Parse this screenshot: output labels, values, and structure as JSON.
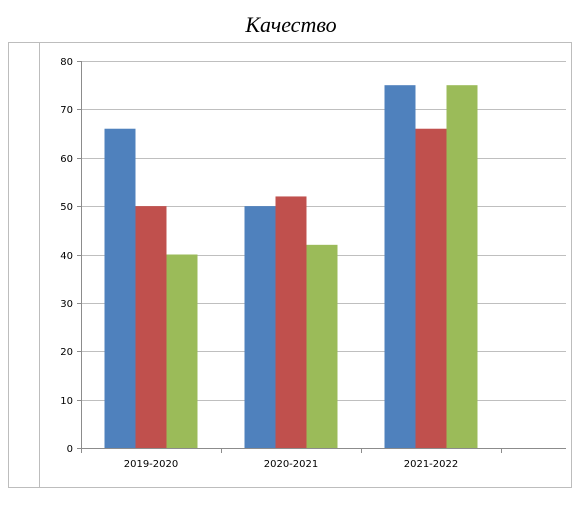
{
  "chart_data": {
    "type": "bar",
    "title": "Качество",
    "categories": [
      "2019-2020",
      "2020-2021",
      "2021-2022"
    ],
    "series": [
      {
        "values": [
          66,
          50,
          75
        ],
        "color": "#4f81bd"
      },
      {
        "values": [
          50,
          52,
          66
        ],
        "color": "#c0504d"
      },
      {
        "values": [
          40,
          42,
          75
        ],
        "color": "#9bbb59"
      }
    ],
    "ylim": [
      0,
      80
    ],
    "yticks": [
      0,
      10,
      20,
      30,
      40,
      50,
      60,
      70,
      80
    ],
    "grid": true,
    "legend": "none"
  }
}
